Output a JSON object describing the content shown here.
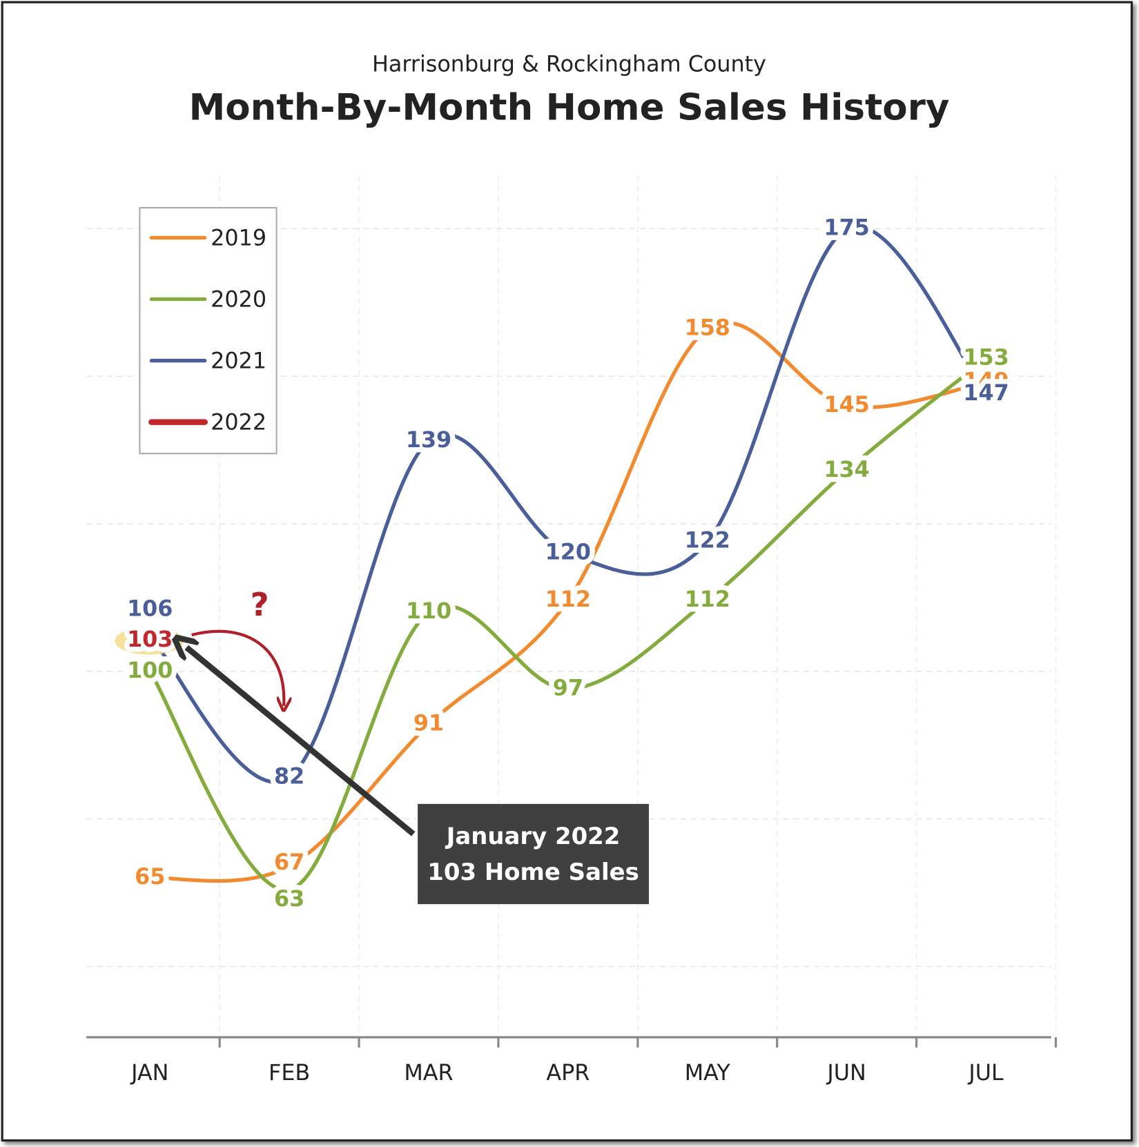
{
  "chart_data": {
    "type": "line",
    "subtitle": "Harrisonburg & Rockingham County",
    "title": "Month-By-Month Home Sales History",
    "categories": [
      "JAN",
      "FEB",
      "MAR",
      "APR",
      "MAY",
      "JUN",
      "JUL"
    ],
    "series": [
      {
        "name": "2019",
        "color": "#f28a30",
        "values": [
          65,
          67,
          91,
          112,
          158,
          145,
          149
        ]
      },
      {
        "name": "2020",
        "color": "#84ab3d",
        "values": [
          100,
          63,
          110,
          97,
          112,
          134,
          153
        ]
      },
      {
        "name": "2021",
        "color": "#4a5f99",
        "values": [
          106,
          82,
          139,
          120,
          122,
          175,
          147
        ]
      },
      {
        "name": "2022",
        "color": "#c0282e",
        "values": [
          103,
          null,
          null,
          null,
          null,
          null,
          null
        ]
      }
    ],
    "ylim": [
      38,
      184
    ],
    "yticks": [
      50,
      75,
      100,
      125,
      150,
      175
    ],
    "grid": true,
    "legend": "upper left",
    "annotations": [
      "?",
      "January 2022",
      "103 Home Sales"
    ]
  }
}
